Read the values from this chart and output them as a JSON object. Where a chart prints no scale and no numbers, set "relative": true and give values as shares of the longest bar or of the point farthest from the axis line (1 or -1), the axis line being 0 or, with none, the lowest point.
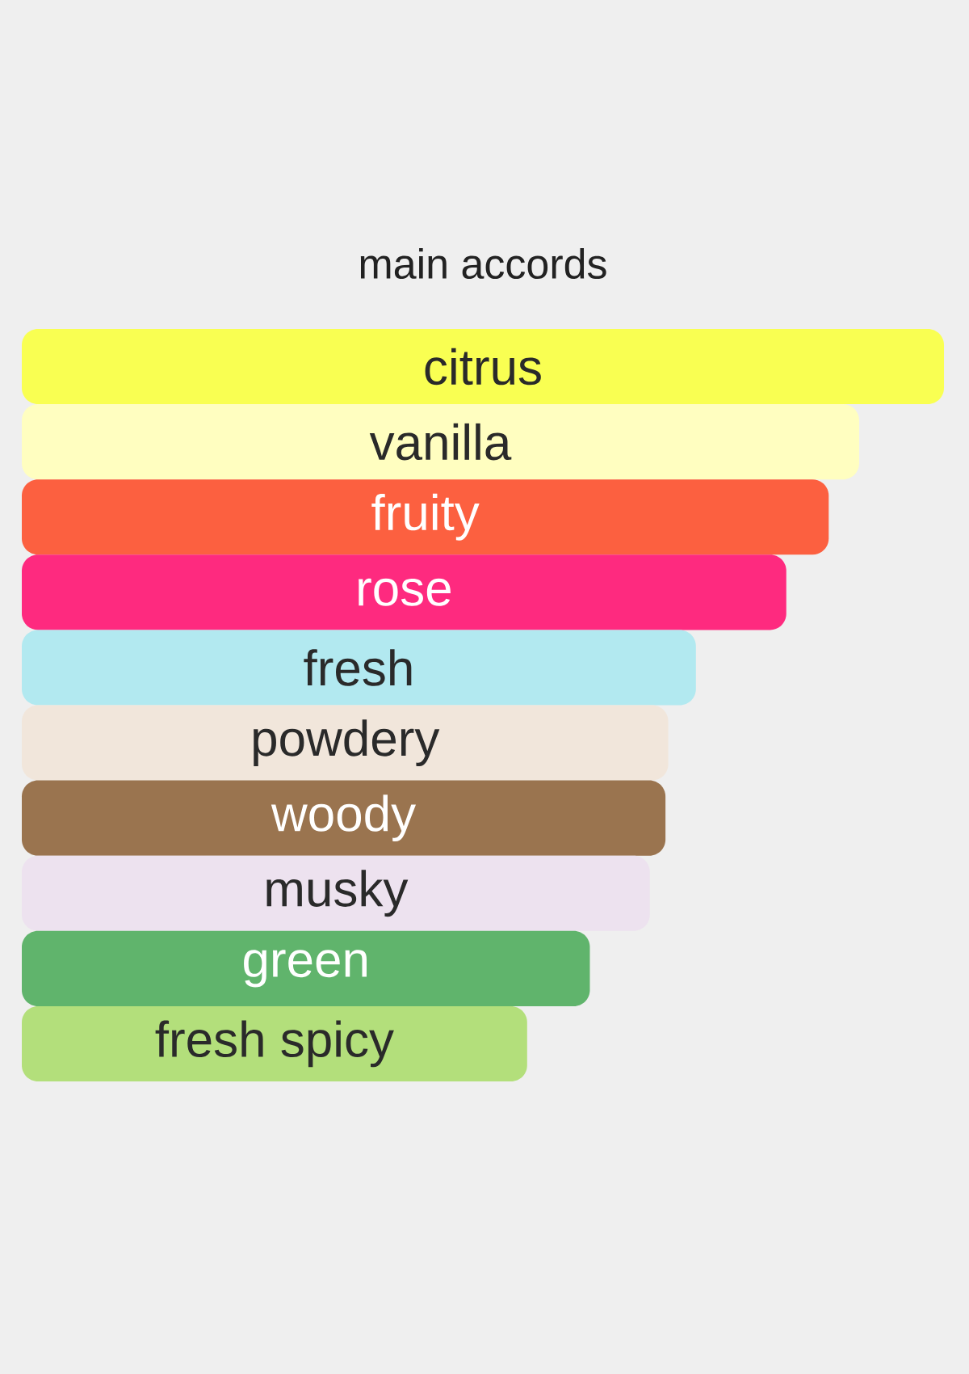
{
  "chart_data": {
    "type": "bar",
    "title": "main accords",
    "orientation": "horizontal",
    "relative": true,
    "categories": [
      "citrus",
      "vanilla",
      "fruity",
      "rose",
      "fresh",
      "powdery",
      "woody",
      "musky",
      "green",
      "fresh spicy"
    ],
    "values": [
      1,
      0.908,
      0.875,
      0.829,
      0.731,
      0.701,
      0.698,
      0.681,
      0.616,
      0.548
    ],
    "colors": [
      "#f9ff52",
      "#fffec0",
      "#fc6040",
      "#fe2a7f",
      "#b2e9f0",
      "#f1e6db",
      "#9a744f",
      "#ede2ef",
      "#60b46c",
      "#b3df7b"
    ]
  }
}
